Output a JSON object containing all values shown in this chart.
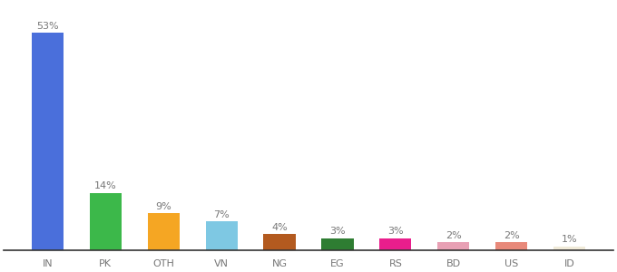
{
  "categories": [
    "IN",
    "PK",
    "OTH",
    "VN",
    "NG",
    "EG",
    "RS",
    "BD",
    "US",
    "ID"
  ],
  "values": [
    53,
    14,
    9,
    7,
    4,
    3,
    3,
    2,
    2,
    1
  ],
  "labels": [
    "53%",
    "14%",
    "9%",
    "7%",
    "4%",
    "3%",
    "3%",
    "2%",
    "2%",
    "1%"
  ],
  "bar_colors": [
    "#4a6fdb",
    "#3cb84a",
    "#f5a623",
    "#7ec8e3",
    "#b35a1f",
    "#2e7d32",
    "#e91e8c",
    "#e8a0b4",
    "#e8897a",
    "#f0ead8"
  ],
  "label_fontsize": 8,
  "tick_fontsize": 8,
  "ylim": [
    0,
    60
  ],
  "background_color": "#ffffff",
  "bar_width": 0.55
}
